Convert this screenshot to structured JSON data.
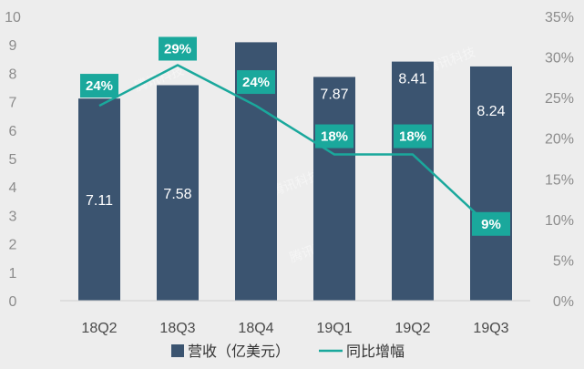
{
  "chart_data": {
    "type": "bar",
    "categories": [
      "18Q2",
      "18Q3",
      "18Q4",
      "19Q1",
      "19Q2",
      "19Q3"
    ],
    "series": [
      {
        "name": "营收（亿美元）",
        "kind": "bar",
        "axis": "left",
        "values": [
          7.11,
          7.58,
          9.09,
          7.87,
          8.41,
          8.24
        ],
        "labels": [
          "7.11",
          "7.58",
          "",
          "7.87",
          "8.41",
          "8.24"
        ],
        "color": "#3b5470"
      },
      {
        "name": "同比增幅",
        "kind": "line",
        "axis": "right",
        "values": [
          24,
          29,
          24,
          18,
          18,
          9
        ],
        "labels": [
          "24%",
          "29%",
          "24%",
          "18%",
          "18%",
          "9%"
        ],
        "color": "#1aa89c"
      }
    ],
    "y_left": {
      "lim": [
        0,
        10
      ],
      "ticks": [
        "0",
        "1",
        "2",
        "3",
        "4",
        "5",
        "6",
        "7",
        "8",
        "9",
        "10"
      ]
    },
    "y_right": {
      "lim": [
        0,
        35
      ],
      "ticks": [
        "0%",
        "5%",
        "10%",
        "15%",
        "20%",
        "25%",
        "30%",
        "35%"
      ]
    },
    "legend_position": "bottom-center",
    "grid": false,
    "watermark": "腾讯科技",
    "background": "#ededed"
  }
}
